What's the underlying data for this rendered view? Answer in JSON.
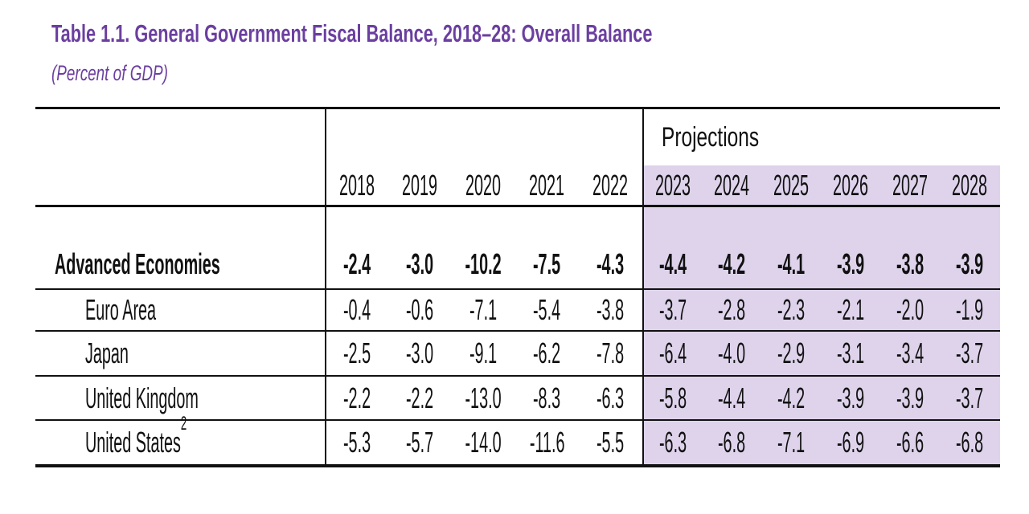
{
  "page": {
    "background": "#ffffff"
  },
  "title": {
    "text": "Table 1.1. General Government Fiscal Balance, 2018–28: Overall Balance",
    "subtitle": "(Percent of GDP)",
    "accent_color": "#6b3fa0"
  },
  "table": {
    "projections_label": "Projections",
    "highlight_color": "#ded3eb",
    "years": [
      "2018",
      "2019",
      "2020",
      "2021",
      "2022"
    ],
    "projection_years": [
      "2023",
      "2024",
      "2025",
      "2026",
      "2027",
      "2028"
    ],
    "rows": [
      {
        "label": "Advanced Economies",
        "bold": true,
        "values": [
          "-2.4",
          "-3.0",
          "-10.2",
          "-7.5",
          "-4.3"
        ],
        "projections": [
          "-4.4",
          "-4.2",
          "-4.1",
          "-3.9",
          "-3.8",
          "-3.9"
        ]
      },
      {
        "label": "Euro Area",
        "values": [
          "-0.4",
          "-0.6",
          "-7.1",
          "-5.4",
          "-3.8"
        ],
        "projections": [
          "-3.7",
          "-2.8",
          "-2.3",
          "-2.1",
          "-2.0",
          "-1.9"
        ]
      },
      {
        "label": "Japan",
        "values": [
          "-2.5",
          "-3.0",
          "-9.1",
          "-6.2",
          "-7.8"
        ],
        "projections": [
          "-6.4",
          "-4.0",
          "-2.9",
          "-3.1",
          "-3.4",
          "-3.7"
        ]
      },
      {
        "label": "United Kingdom",
        "values": [
          "-2.2",
          "-2.2",
          "-13.0",
          "-8.3",
          "-6.3"
        ],
        "projections": [
          "-5.8",
          "-4.4",
          "-4.2",
          "-3.9",
          "-3.9",
          "-3.7"
        ]
      },
      {
        "label": "United States",
        "footnote_marker": "2",
        "values": [
          "-5.3",
          "-5.7",
          "-14.0",
          "-11.6",
          "-5.5"
        ],
        "projections": [
          "-6.3",
          "-6.8",
          "-7.1",
          "-6.9",
          "-6.6",
          "-6.8"
        ]
      }
    ]
  }
}
